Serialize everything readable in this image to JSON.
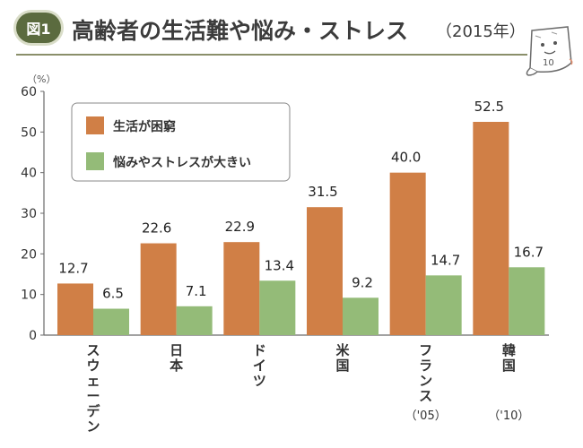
{
  "header": {
    "badge": "図1",
    "title": "高齢者の生活難や悩み・ストレス",
    "year": "（2015年）"
  },
  "mascot": {
    "icon": "paper-mascot-icon",
    "scribble": "10"
  },
  "chart_data": {
    "type": "bar",
    "unit_label": "（%）",
    "ylim": [
      0,
      60
    ],
    "yticks": [
      0,
      10,
      20,
      30,
      40,
      50,
      60
    ],
    "grid": false,
    "legend_position": "top-left",
    "categories": [
      "スウェーデン",
      "日本",
      "ドイツ",
      "米国",
      "フランス",
      "韓国"
    ],
    "category_notes": [
      "",
      "",
      "",
      "",
      "（'05）",
      "（'10）"
    ],
    "series": [
      {
        "name": "生活が困窮",
        "color": "#d07f46",
        "values": [
          12.7,
          22.6,
          22.9,
          31.5,
          40.0,
          52.5
        ]
      },
      {
        "name": "悩みやストレスが大きい",
        "color": "#94bb78",
        "values": [
          6.5,
          7.1,
          13.4,
          9.2,
          14.7,
          16.7
        ]
      }
    ]
  }
}
